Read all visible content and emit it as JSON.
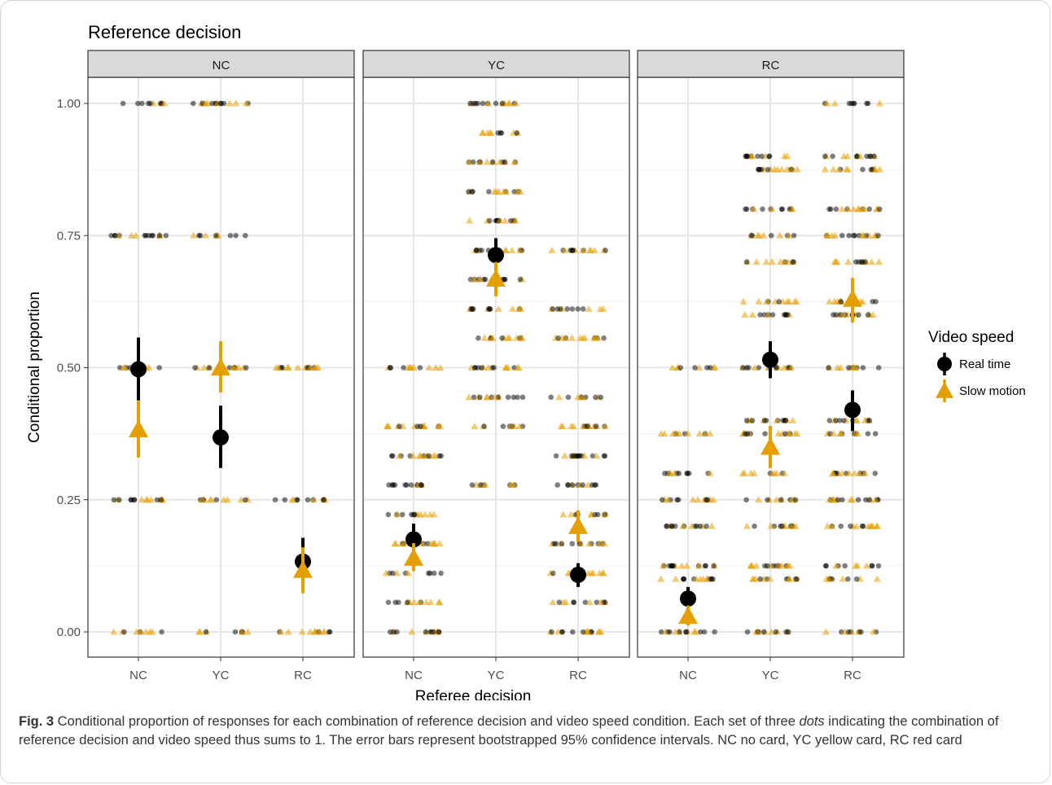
{
  "chart_data": {
    "type": "scatter",
    "title": "Reference decision",
    "xlabel": "Referee decision",
    "ylabel": "Conditional proportion",
    "facets": [
      "NC",
      "YC",
      "RC"
    ],
    "categories": [
      "NC",
      "YC",
      "RC"
    ],
    "yticks": [
      "0.00",
      "0.25",
      "0.50",
      "0.75",
      "1.00"
    ],
    "ytick_values": [
      0,
      0.25,
      0.5,
      0.75,
      1.0
    ],
    "ylim": [
      -0.03,
      1.05
    ],
    "grid": true,
    "legend": {
      "title": "Video speed",
      "position": "right",
      "items": [
        {
          "label": "Real time",
          "shape": "circle",
          "color": "#000000"
        },
        {
          "label": "Slow motion",
          "shape": "triangle",
          "color": "#E69F00"
        }
      ]
    },
    "series": [
      {
        "name": "Real time",
        "color": "#000000",
        "points": [
          {
            "facet": "NC",
            "x": "NC",
            "y": 0.497,
            "lo": 0.438,
            "hi": 0.557
          },
          {
            "facet": "NC",
            "x": "YC",
            "y": 0.368,
            "lo": 0.31,
            "hi": 0.428
          },
          {
            "facet": "NC",
            "x": "RC",
            "y": 0.133,
            "lo": 0.088,
            "hi": 0.178
          },
          {
            "facet": "YC",
            "x": "NC",
            "y": 0.175,
            "lo": 0.146,
            "hi": 0.205
          },
          {
            "facet": "YC",
            "x": "YC",
            "y": 0.713,
            "lo": 0.682,
            "hi": 0.745
          },
          {
            "facet": "YC",
            "x": "RC",
            "y": 0.108,
            "lo": 0.085,
            "hi": 0.13
          },
          {
            "facet": "RC",
            "x": "NC",
            "y": 0.063,
            "lo": 0.043,
            "hi": 0.085
          },
          {
            "facet": "RC",
            "x": "YC",
            "y": 0.515,
            "lo": 0.48,
            "hi": 0.55
          },
          {
            "facet": "RC",
            "x": "RC",
            "y": 0.42,
            "lo": 0.38,
            "hi": 0.457
          }
        ]
      },
      {
        "name": "Slow motion",
        "color": "#E69F00",
        "points": [
          {
            "facet": "NC",
            "x": "NC",
            "y": 0.383,
            "lo": 0.33,
            "hi": 0.437
          },
          {
            "facet": "NC",
            "x": "YC",
            "y": 0.5,
            "lo": 0.453,
            "hi": 0.55
          },
          {
            "facet": "NC",
            "x": "RC",
            "y": 0.117,
            "lo": 0.073,
            "hi": 0.16
          },
          {
            "facet": "YC",
            "x": "NC",
            "y": 0.14,
            "lo": 0.115,
            "hi": 0.168
          },
          {
            "facet": "YC",
            "x": "YC",
            "y": 0.668,
            "lo": 0.635,
            "hi": 0.7
          },
          {
            "facet": "YC",
            "x": "RC",
            "y": 0.2,
            "lo": 0.17,
            "hi": 0.23
          },
          {
            "facet": "RC",
            "x": "NC",
            "y": 0.03,
            "lo": 0.012,
            "hi": 0.05
          },
          {
            "facet": "RC",
            "x": "YC",
            "y": 0.35,
            "lo": 0.31,
            "hi": 0.39
          },
          {
            "facet": "RC",
            "x": "RC",
            "y": 0.63,
            "lo": 0.585,
            "hi": 0.67
          }
        ]
      }
    ],
    "jitter_levels": [
      {
        "facet": "NC",
        "x": "NC",
        "levels": [
          0,
          0.25,
          0.5,
          0.75,
          1.0
        ]
      },
      {
        "facet": "NC",
        "x": "YC",
        "levels": [
          0,
          0.25,
          0.5,
          0.75,
          1.0
        ]
      },
      {
        "facet": "NC",
        "x": "RC",
        "levels": [
          0,
          0.25,
          0.5
        ]
      },
      {
        "facet": "YC",
        "x": "NC",
        "levels": [
          0,
          0.056,
          0.111,
          0.167,
          0.222,
          0.278,
          0.333,
          0.389,
          0.5
        ]
      },
      {
        "facet": "YC",
        "x": "YC",
        "levels": [
          0.278,
          0.389,
          0.444,
          0.5,
          0.556,
          0.611,
          0.667,
          0.722,
          0.778,
          0.833,
          0.889,
          0.944,
          1.0
        ]
      },
      {
        "facet": "YC",
        "x": "RC",
        "levels": [
          0,
          0.056,
          0.111,
          0.167,
          0.222,
          0.278,
          0.333,
          0.389,
          0.444,
          0.556,
          0.611,
          0.722
        ]
      },
      {
        "facet": "RC",
        "x": "NC",
        "levels": [
          0,
          0.1,
          0.125,
          0.2,
          0.25,
          0.3,
          0.375,
          0.5
        ]
      },
      {
        "facet": "RC",
        "x": "YC",
        "levels": [
          0,
          0.1,
          0.125,
          0.2,
          0.25,
          0.3,
          0.375,
          0.4,
          0.5,
          0.6,
          0.625,
          0.7,
          0.75,
          0.8,
          0.875,
          0.9
        ]
      },
      {
        "facet": "RC",
        "x": "RC",
        "levels": [
          0,
          0.1,
          0.125,
          0.2,
          0.25,
          0.3,
          0.375,
          0.4,
          0.5,
          0.6,
          0.625,
          0.7,
          0.75,
          0.8,
          0.875,
          0.9,
          1.0
        ]
      }
    ]
  },
  "caption": {
    "label": "Fig. 3",
    "text_before": " Conditional proportion of responses for each combination of reference decision and video speed condition. Each set of three ",
    "italic": "dots",
    "text_after": " indicating the combination of reference decision and video speed thus sums to 1. The error bars represent bootstrapped 95% confidence intervals. NC no card, YC yellow card, RC red card"
  }
}
